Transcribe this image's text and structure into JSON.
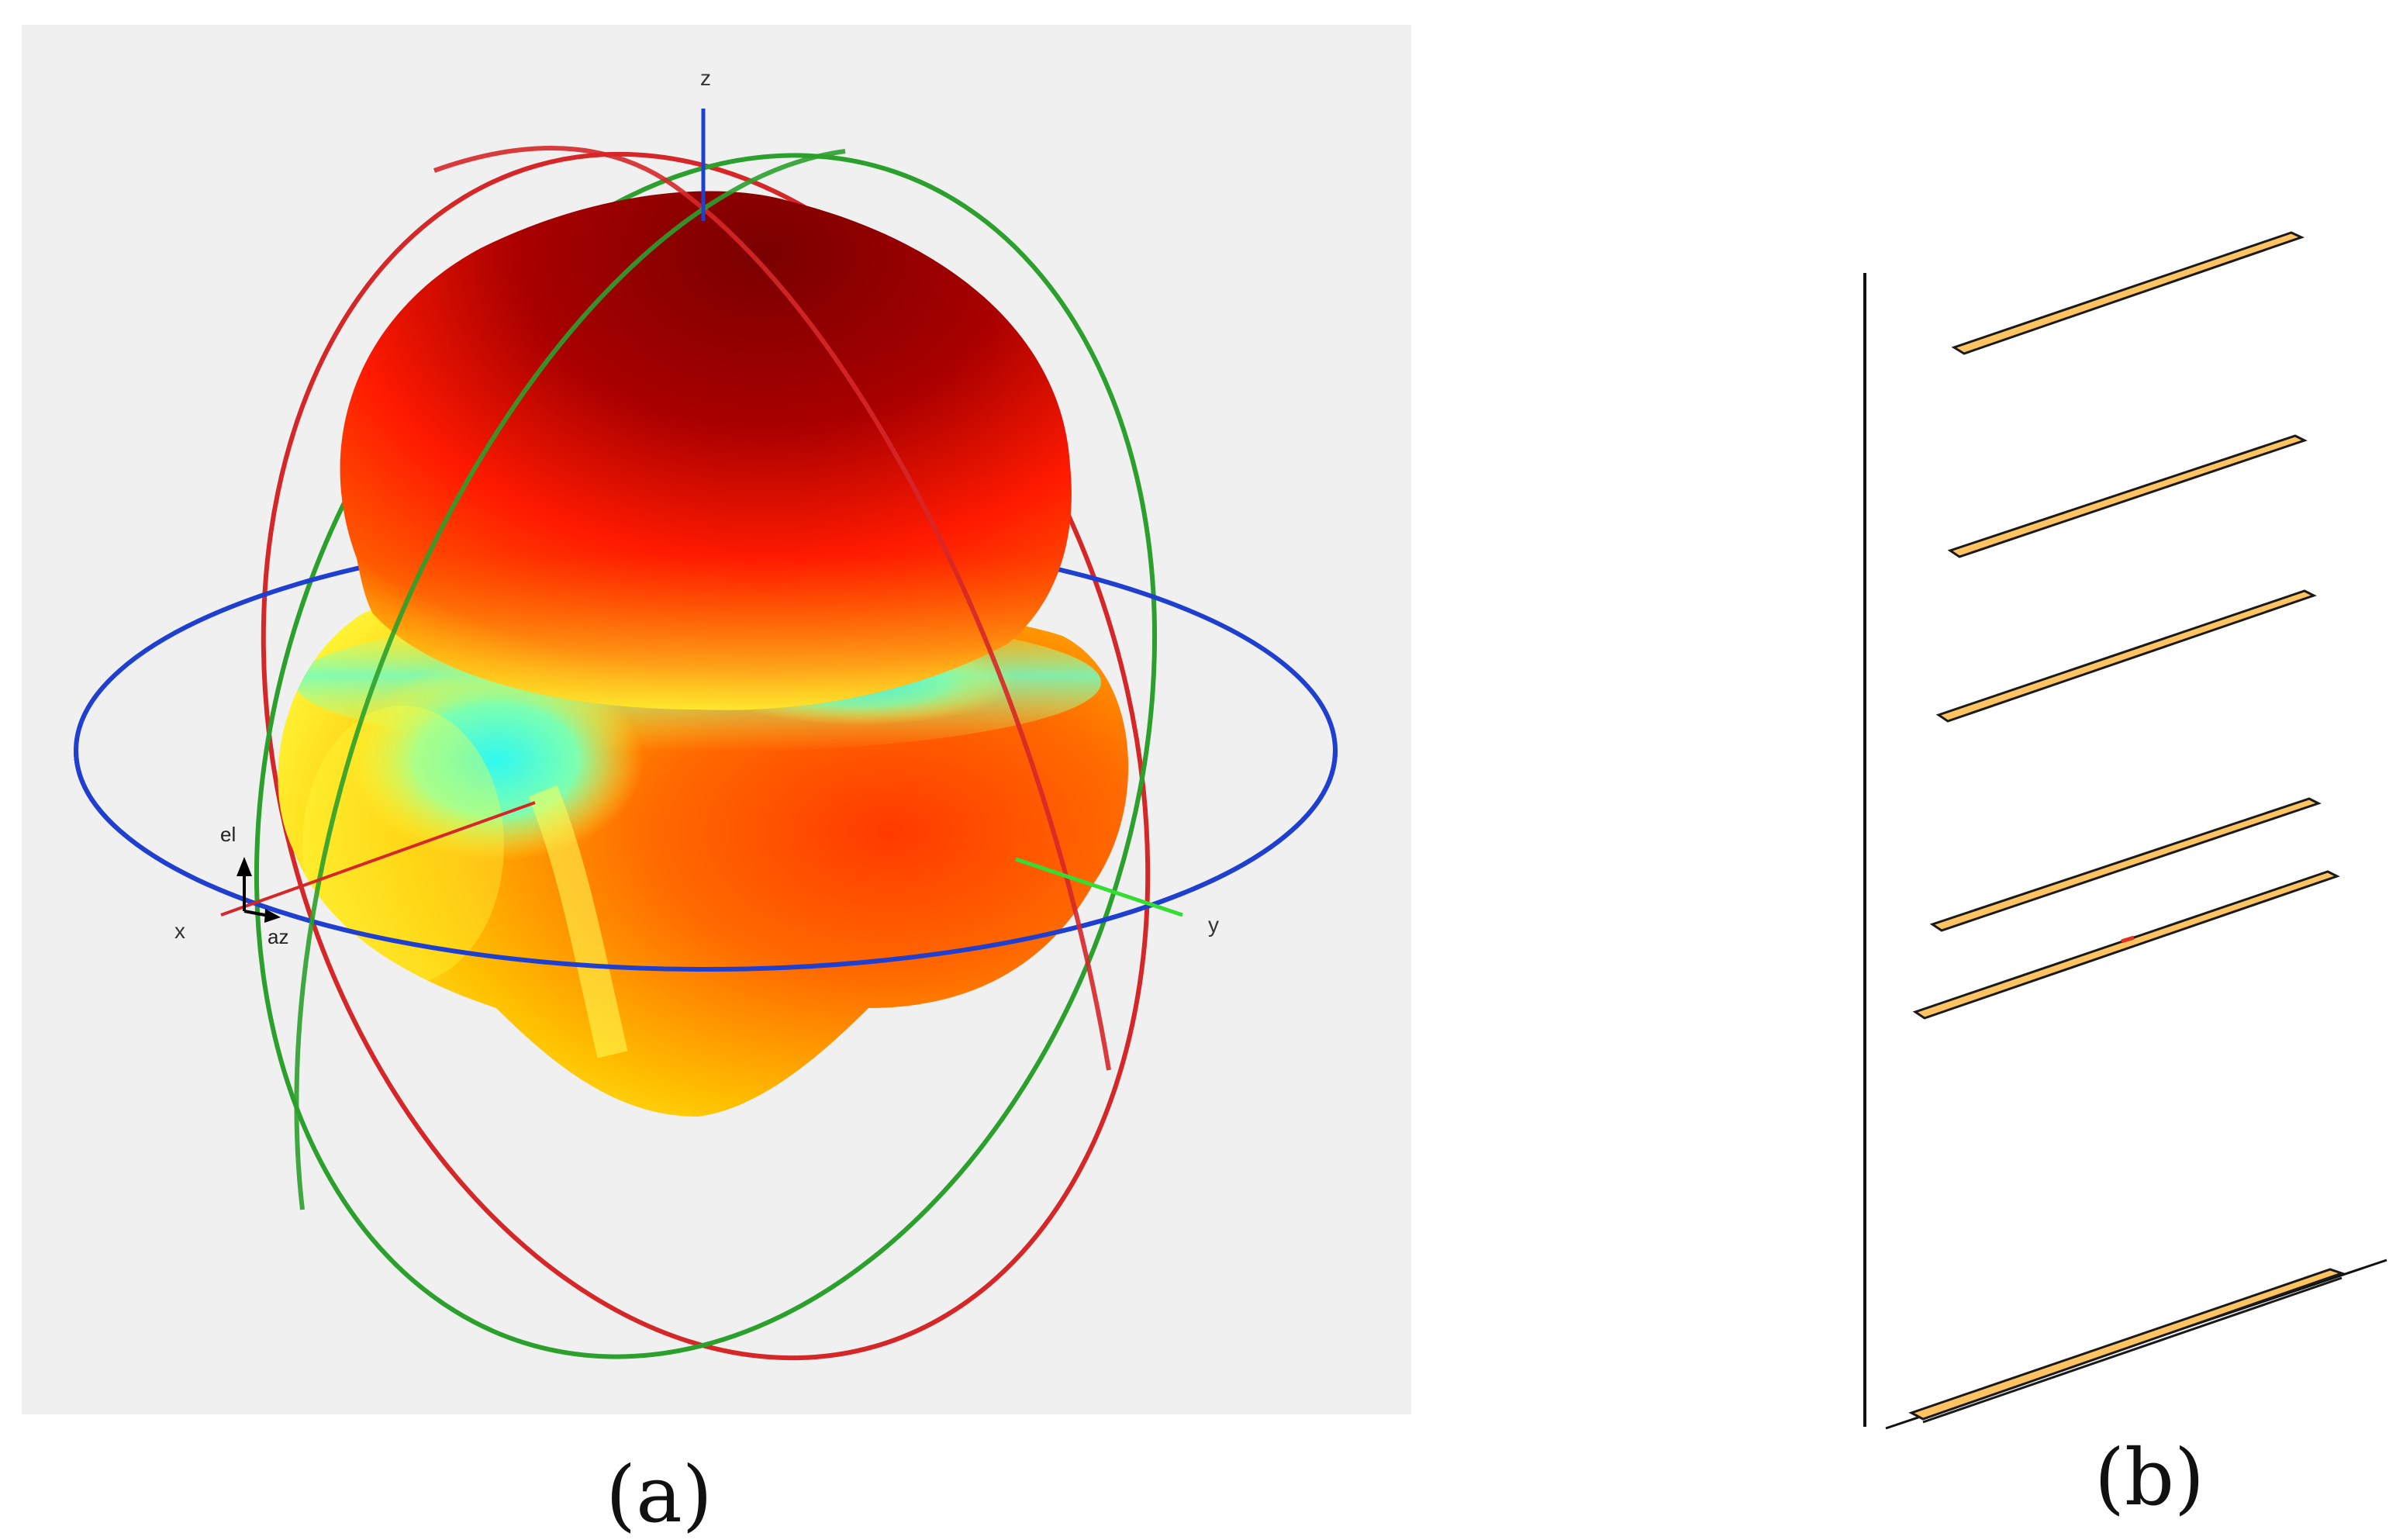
{
  "panel_a": {
    "caption": "(a)",
    "axis_labels": {
      "x": "x",
      "y": "y",
      "z": "z"
    },
    "triad_labels": {
      "el": "el",
      "az": "az"
    },
    "colors": {
      "background": "#f0f0f0",
      "x_axis": "#d62728",
      "y_axis": "#2ca02c",
      "z_axis": "#1f3fd0",
      "elevation_circle": "#d62728",
      "azimuth_circle": "#1f3fd0",
      "meridian_circle": "#2ca02c",
      "pattern_high": "#8b0000",
      "pattern_mid": "#ff2200",
      "pattern_low": "#ffff33",
      "pattern_null": "#33ffee"
    }
  },
  "panel_b": {
    "caption": "(b)",
    "element_count": 6,
    "colors": {
      "strip_fill": "#ffc461",
      "strip_edge": "#1a1a1a",
      "feed": "#e03020",
      "axis_line": "#111111"
    }
  }
}
